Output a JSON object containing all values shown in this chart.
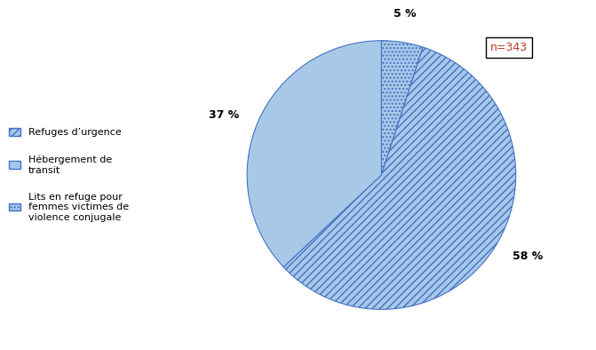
{
  "wedge_sizes": [
    5,
    58,
    37
  ],
  "wedge_hatches": [
    "....",
    "////",
    "==="
  ],
  "wedge_face_color": "#a8c8e8",
  "wedge_edge_color": "#4472c4",
  "pct_labels": [
    "5 %",
    "58 %",
    "37 %"
  ],
  "n_label": "n=343",
  "n_label_color": "#c0392b",
  "background_color": "#ffffff",
  "legend_labels": [
    "Refuges d’urgence",
    "Hébergement de\ntransit",
    "Lits en refuge pour\nfemmes victimes de\nviolence conjugale"
  ],
  "legend_hatches": [
    "////",
    "===",
    "...."
  ],
  "pct_fontsize": 9,
  "legend_fontsize": 8
}
